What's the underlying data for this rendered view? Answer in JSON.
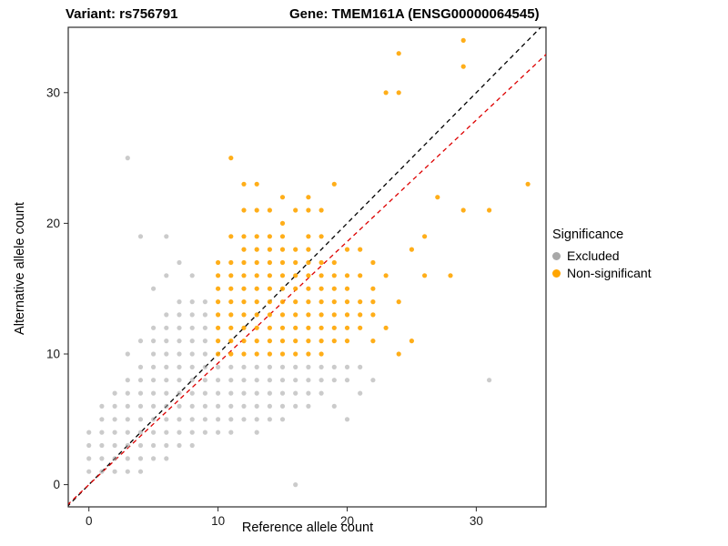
{
  "chart_data": {
    "type": "scatter",
    "title_left": "Variant: rs756791",
    "title_right": "Gene: TMEM161A (ENSG00000064545)",
    "xlabel": "Reference allele count",
    "ylabel": "Alternative allele count",
    "xlim": [
      -1.6,
      35.4
    ],
    "ylim": [
      -1.7,
      35.0
    ],
    "xticks": [
      0,
      10,
      20,
      30
    ],
    "yticks": [
      0,
      10,
      20,
      30
    ],
    "grid": false,
    "legend": {
      "title": "Significance",
      "position": "right",
      "entries": [
        {
          "label": "Excluded",
          "color": "#a8a8a8"
        },
        {
          "label": "Non-significant",
          "color": "#ffa500"
        }
      ]
    },
    "lines": [
      {
        "name": "identity-line",
        "color": "#000000",
        "slope": 1.0,
        "intercept": 0,
        "dashed": true
      },
      {
        "name": "fit-line",
        "color": "#dd0000",
        "slope": 0.93,
        "intercept": 0,
        "dashed": true
      }
    ],
    "series": [
      {
        "name": "Excluded",
        "color": "#a0a0a0",
        "points": [
          [
            0,
            1
          ],
          [
            0,
            2
          ],
          [
            0,
            3
          ],
          [
            0,
            4
          ],
          [
            1,
            1
          ],
          [
            1,
            2
          ],
          [
            1,
            3
          ],
          [
            1,
            4
          ],
          [
            1,
            5
          ],
          [
            1,
            6
          ],
          [
            2,
            1
          ],
          [
            2,
            2
          ],
          [
            2,
            3
          ],
          [
            2,
            4
          ],
          [
            2,
            5
          ],
          [
            2,
            6
          ],
          [
            2,
            7
          ],
          [
            3,
            1
          ],
          [
            3,
            2
          ],
          [
            3,
            3
          ],
          [
            3,
            4
          ],
          [
            3,
            5
          ],
          [
            3,
            6
          ],
          [
            3,
            7
          ],
          [
            3,
            8
          ],
          [
            3,
            10
          ],
          [
            3,
            25
          ],
          [
            4,
            1
          ],
          [
            4,
            2
          ],
          [
            4,
            3
          ],
          [
            4,
            4
          ],
          [
            4,
            5
          ],
          [
            4,
            6
          ],
          [
            4,
            7
          ],
          [
            4,
            8
          ],
          [
            4,
            9
          ],
          [
            4,
            11
          ],
          [
            4,
            19
          ],
          [
            5,
            2
          ],
          [
            5,
            3
          ],
          [
            5,
            4
          ],
          [
            5,
            5
          ],
          [
            5,
            6
          ],
          [
            5,
            7
          ],
          [
            5,
            8
          ],
          [
            5,
            9
          ],
          [
            5,
            10
          ],
          [
            5,
            11
          ],
          [
            5,
            12
          ],
          [
            5,
            15
          ],
          [
            6,
            2
          ],
          [
            6,
            3
          ],
          [
            6,
            4
          ],
          [
            6,
            5
          ],
          [
            6,
            6
          ],
          [
            6,
            7
          ],
          [
            6,
            8
          ],
          [
            6,
            9
          ],
          [
            6,
            10
          ],
          [
            6,
            11
          ],
          [
            6,
            12
          ],
          [
            6,
            13
          ],
          [
            6,
            16
          ],
          [
            6,
            19
          ],
          [
            7,
            3
          ],
          [
            7,
            4
          ],
          [
            7,
            5
          ],
          [
            7,
            6
          ],
          [
            7,
            7
          ],
          [
            7,
            8
          ],
          [
            7,
            9
          ],
          [
            7,
            10
          ],
          [
            7,
            11
          ],
          [
            7,
            12
          ],
          [
            7,
            13
          ],
          [
            7,
            14
          ],
          [
            7,
            17
          ],
          [
            8,
            3
          ],
          [
            8,
            4
          ],
          [
            8,
            5
          ],
          [
            8,
            6
          ],
          [
            8,
            7
          ],
          [
            8,
            8
          ],
          [
            8,
            9
          ],
          [
            8,
            10
          ],
          [
            8,
            11
          ],
          [
            8,
            12
          ],
          [
            8,
            13
          ],
          [
            8,
            14
          ],
          [
            8,
            16
          ],
          [
            9,
            4
          ],
          [
            9,
            5
          ],
          [
            9,
            6
          ],
          [
            9,
            7
          ],
          [
            9,
            8
          ],
          [
            9,
            9
          ],
          [
            9,
            10
          ],
          [
            9,
            11
          ],
          [
            9,
            12
          ],
          [
            9,
            13
          ],
          [
            9,
            14
          ],
          [
            10,
            4
          ],
          [
            10,
            5
          ],
          [
            10,
            6
          ],
          [
            10,
            7
          ],
          [
            10,
            8
          ],
          [
            10,
            9
          ],
          [
            11,
            4
          ],
          [
            11,
            5
          ],
          [
            11,
            6
          ],
          [
            11,
            7
          ],
          [
            11,
            8
          ],
          [
            11,
            9
          ],
          [
            12,
            5
          ],
          [
            12,
            6
          ],
          [
            12,
            7
          ],
          [
            12,
            8
          ],
          [
            12,
            9
          ],
          [
            13,
            4
          ],
          [
            13,
            5
          ],
          [
            13,
            6
          ],
          [
            13,
            7
          ],
          [
            13,
            8
          ],
          [
            13,
            9
          ],
          [
            14,
            5
          ],
          [
            14,
            6
          ],
          [
            14,
            7
          ],
          [
            14,
            8
          ],
          [
            14,
            9
          ],
          [
            15,
            5
          ],
          [
            15,
            6
          ],
          [
            15,
            7
          ],
          [
            15,
            8
          ],
          [
            15,
            9
          ],
          [
            16,
            0
          ],
          [
            16,
            6
          ],
          [
            16,
            7
          ],
          [
            16,
            8
          ],
          [
            16,
            9
          ],
          [
            17,
            6
          ],
          [
            17,
            7
          ],
          [
            17,
            8
          ],
          [
            17,
            9
          ],
          [
            18,
            7
          ],
          [
            18,
            8
          ],
          [
            18,
            9
          ],
          [
            19,
            6
          ],
          [
            19,
            8
          ],
          [
            19,
            9
          ],
          [
            20,
            5
          ],
          [
            20,
            8
          ],
          [
            20,
            9
          ],
          [
            21,
            7
          ],
          [
            21,
            9
          ],
          [
            22,
            8
          ],
          [
            31,
            8
          ]
        ]
      },
      {
        "name": "Non-significant",
        "color": "#ffa500",
        "points": [
          [
            10,
            10
          ],
          [
            10,
            11
          ],
          [
            10,
            12
          ],
          [
            10,
            13
          ],
          [
            10,
            14
          ],
          [
            10,
            15
          ],
          [
            10,
            16
          ],
          [
            10,
            17
          ],
          [
            11,
            10
          ],
          [
            11,
            11
          ],
          [
            11,
            12
          ],
          [
            11,
            13
          ],
          [
            11,
            14
          ],
          [
            11,
            15
          ],
          [
            11,
            16
          ],
          [
            11,
            17
          ],
          [
            11,
            19
          ],
          [
            11,
            25
          ],
          [
            12,
            10
          ],
          [
            12,
            11
          ],
          [
            12,
            12
          ],
          [
            12,
            13
          ],
          [
            12,
            14
          ],
          [
            12,
            15
          ],
          [
            12,
            16
          ],
          [
            12,
            17
          ],
          [
            12,
            18
          ],
          [
            12,
            19
          ],
          [
            12,
            21
          ],
          [
            12,
            23
          ],
          [
            13,
            10
          ],
          [
            13,
            11
          ],
          [
            13,
            12
          ],
          [
            13,
            13
          ],
          [
            13,
            14
          ],
          [
            13,
            15
          ],
          [
            13,
            16
          ],
          [
            13,
            17
          ],
          [
            13,
            18
          ],
          [
            13,
            19
          ],
          [
            13,
            21
          ],
          [
            13,
            23
          ],
          [
            14,
            10
          ],
          [
            14,
            11
          ],
          [
            14,
            12
          ],
          [
            14,
            13
          ],
          [
            14,
            14
          ],
          [
            14,
            15
          ],
          [
            14,
            16
          ],
          [
            14,
            17
          ],
          [
            14,
            18
          ],
          [
            14,
            19
          ],
          [
            14,
            21
          ],
          [
            15,
            10
          ],
          [
            15,
            11
          ],
          [
            15,
            12
          ],
          [
            15,
            13
          ],
          [
            15,
            14
          ],
          [
            15,
            15
          ],
          [
            15,
            16
          ],
          [
            15,
            17
          ],
          [
            15,
            18
          ],
          [
            15,
            19
          ],
          [
            15,
            20
          ],
          [
            15,
            22
          ],
          [
            16,
            10
          ],
          [
            16,
            11
          ],
          [
            16,
            12
          ],
          [
            16,
            13
          ],
          [
            16,
            14
          ],
          [
            16,
            15
          ],
          [
            16,
            16
          ],
          [
            16,
            17
          ],
          [
            16,
            18
          ],
          [
            16,
            21
          ],
          [
            17,
            10
          ],
          [
            17,
            11
          ],
          [
            17,
            12
          ],
          [
            17,
            13
          ],
          [
            17,
            14
          ],
          [
            17,
            15
          ],
          [
            17,
            16
          ],
          [
            17,
            17
          ],
          [
            17,
            18
          ],
          [
            17,
            19
          ],
          [
            17,
            21
          ],
          [
            17,
            22
          ],
          [
            18,
            10
          ],
          [
            18,
            11
          ],
          [
            18,
            12
          ],
          [
            18,
            13
          ],
          [
            18,
            14
          ],
          [
            18,
            15
          ],
          [
            18,
            16
          ],
          [
            18,
            17
          ],
          [
            18,
            19
          ],
          [
            18,
            21
          ],
          [
            19,
            11
          ],
          [
            19,
            12
          ],
          [
            19,
            13
          ],
          [
            19,
            14
          ],
          [
            19,
            15
          ],
          [
            19,
            16
          ],
          [
            19,
            17
          ],
          [
            19,
            23
          ],
          [
            20,
            11
          ],
          [
            20,
            12
          ],
          [
            20,
            13
          ],
          [
            20,
            14
          ],
          [
            20,
            15
          ],
          [
            20,
            16
          ],
          [
            20,
            18
          ],
          [
            21,
            12
          ],
          [
            21,
            13
          ],
          [
            21,
            14
          ],
          [
            21,
            16
          ],
          [
            21,
            18
          ],
          [
            22,
            11
          ],
          [
            22,
            13
          ],
          [
            22,
            14
          ],
          [
            22,
            15
          ],
          [
            22,
            17
          ],
          [
            23,
            12
          ],
          [
            23,
            16
          ],
          [
            23,
            30
          ],
          [
            24,
            10
          ],
          [
            24,
            14
          ],
          [
            24,
            30
          ],
          [
            24,
            33
          ],
          [
            25,
            11
          ],
          [
            25,
            18
          ],
          [
            26,
            16
          ],
          [
            26,
            19
          ],
          [
            27,
            22
          ],
          [
            28,
            16
          ],
          [
            29,
            21
          ],
          [
            29,
            32
          ],
          [
            29,
            34
          ],
          [
            31,
            21
          ],
          [
            34,
            23
          ]
        ]
      }
    ]
  }
}
